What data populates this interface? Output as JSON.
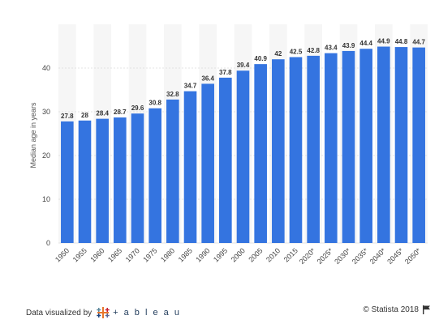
{
  "chart_data": {
    "type": "bar",
    "ylabel": "Median age in years",
    "xlabel": "",
    "title": "",
    "ylim": [
      0,
      50
    ],
    "yticks": [
      0,
      10,
      20,
      30,
      40
    ],
    "grid": true,
    "categories": [
      "1950",
      "1955",
      "1960",
      "1965",
      "1970",
      "1975",
      "1980",
      "1985",
      "1990",
      "1995",
      "2000",
      "2005",
      "2010",
      "2015",
      "2020*",
      "2025*",
      "2030*",
      "2035*",
      "2040*",
      "2045*",
      "2050*"
    ],
    "values": [
      27.8,
      28,
      28.4,
      28.7,
      29.6,
      30.8,
      32.8,
      34.7,
      36.4,
      37.8,
      39.4,
      40.9,
      42,
      42.5,
      42.8,
      43.4,
      43.9,
      44.4,
      44.9,
      44.8,
      44.7
    ],
    "bar_color": "#3474e0"
  },
  "footer": {
    "data_visualized": "Data visualized by",
    "tableau_word": "+ a b l e a u",
    "copyright": "© Statista 2018"
  },
  "icons": {
    "tableau_logo": "tableau-logo-icon",
    "flag": "flag-icon"
  },
  "colors": {
    "bar": "#3474e0",
    "band": "#f6f6f6",
    "grid": "#e3e3e3",
    "label": "#333333"
  }
}
